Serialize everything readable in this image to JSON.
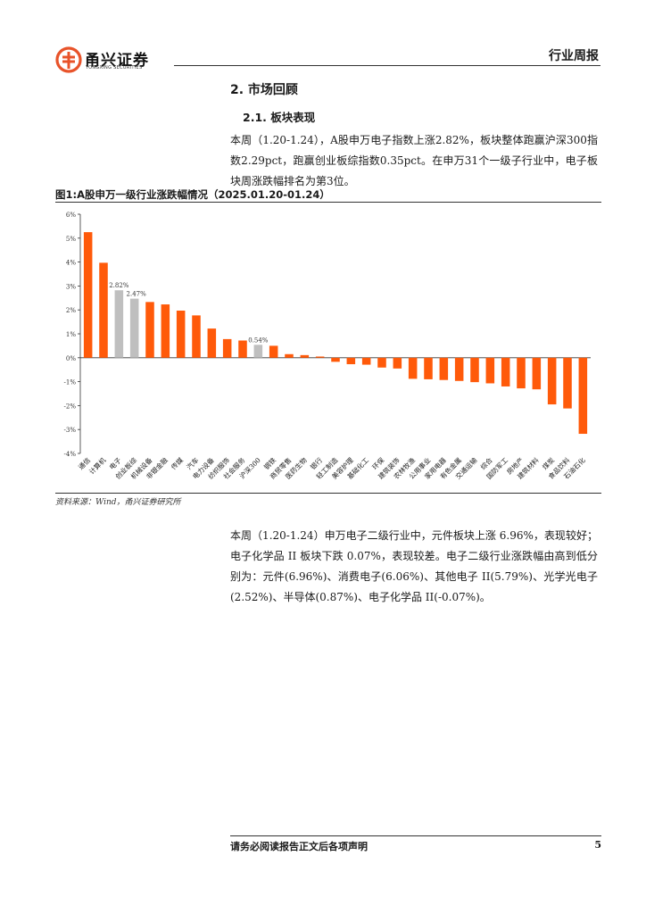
{
  "header": {
    "logo_cn": "甬兴证券",
    "logo_en": "YONGXING SECURITIES",
    "report_type": "行业周报",
    "logo_color": "#e8532a"
  },
  "section": {
    "h2": "2. 市场回顾",
    "h3": "2.1. 板块表现"
  },
  "paragraphs": {
    "p1": "本周（1.20-1.24），A股申万电子指数上涨2.82%，板块整体跑赢沪深300指数2.29pct，跑赢创业板综指数0.35pct。在申万31个一级子行业中，电子板块周涨跌幅排名为第3位。",
    "p2": "本周（1.20-1.24）申万电子二级行业中，元件板块上涨 6.96%，表现较好；电子化学品 II 板块下跌 0.07%，表现较差。电子二级行业涨跌幅由高到低分别为：元件(6.96%)、消费电子(6.06%)、其他电子 II(5.79%)、光学光电子(2.52%)、半导体(0.87%)、电子化学品 II(-0.07%)。"
  },
  "figure": {
    "title": "图1:A股申万一级行业涨跌幅情况（2025.01.20-01.24）",
    "source": "资料来源：Wind，甬兴证券研究所"
  },
  "chart_data": {
    "type": "bar",
    "categories": [
      "通信",
      "计算机",
      "电子",
      "创业板综",
      "机械设备",
      "非银金融",
      "传媒",
      "汽车",
      "电力设备",
      "纺织服饰",
      "社会服务",
      "沪深300",
      "钢铁",
      "商贸零售",
      "医药生物",
      "银行",
      "轻工制造",
      "美容护理",
      "基础化工",
      "环保",
      "建筑装饰",
      "农林牧渔",
      "公用事业",
      "家用电器",
      "有色金属",
      "交通运输",
      "综合",
      "国防军工",
      "房地产",
      "建筑材料",
      "煤炭",
      "食品饮料",
      "石油石化"
    ],
    "values": [
      5.25,
      3.97,
      2.82,
      2.47,
      2.33,
      2.23,
      1.97,
      1.77,
      1.22,
      0.78,
      0.72,
      0.54,
      0.5,
      0.15,
      0.11,
      0.05,
      -0.17,
      -0.27,
      -0.29,
      -0.41,
      -0.45,
      -0.88,
      -0.9,
      -0.93,
      -0.97,
      -1.02,
      -1.07,
      -1.2,
      -1.28,
      -1.32,
      -1.95,
      -2.12,
      -3.18
    ],
    "data_labels": {
      "2": "2.82%",
      "3": "2.47%",
      "11": "0.54%"
    },
    "highlight_indices": [
      2,
      3,
      11
    ],
    "ylim": [
      -4,
      6
    ],
    "yticks": [
      "6%",
      "5%",
      "4%",
      "3%",
      "2%",
      "1%",
      "0%",
      "-1%",
      "-2%",
      "-3%",
      "-4%"
    ],
    "colors": {
      "default": "#ff5a0a",
      "highlight": "#bfbfbf"
    },
    "grid": false,
    "legend": "none"
  },
  "footer": {
    "disclaimer": "请务必阅读报告正文后各项声明",
    "page_number": "5"
  }
}
